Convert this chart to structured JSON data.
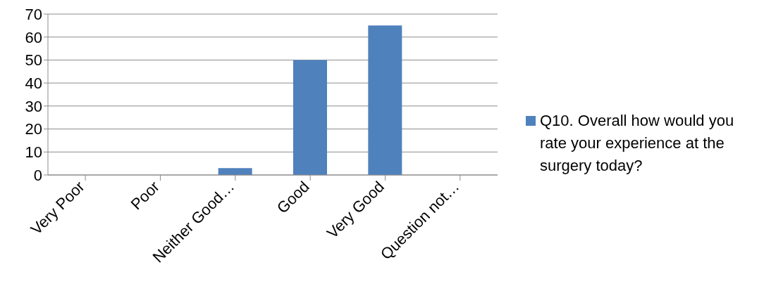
{
  "chart_data": {
    "type": "bar",
    "categories": [
      "Very Poor",
      "Poor",
      "Neither Good…",
      "Good",
      "Very Good",
      "Question not…"
    ],
    "series": [
      {
        "name": "Q10. Overall how would you rate your experience at the surgery today?",
        "color": "#4f81bd",
        "values": [
          0,
          0,
          3,
          50,
          65,
          0
        ]
      }
    ],
    "ylim": [
      0,
      70
    ],
    "yticks": [
      0,
      10,
      20,
      30,
      40,
      50,
      60,
      70
    ],
    "grid": "y",
    "legend": "right"
  }
}
